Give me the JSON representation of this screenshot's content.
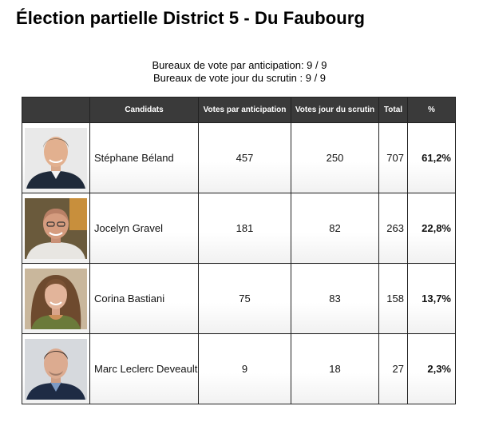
{
  "title": "Élection partielle District 5 - Du Faubourg",
  "bureaux": {
    "anticipation": "Bureaux de vote par anticipation:  9   / 9",
    "jour_scrutin": "Bureaux de vote jour du scrutin :  9   / 9"
  },
  "table": {
    "headers": {
      "photo": "",
      "candidats": "Candidats",
      "votes_anticipation": "Votes par anticipation",
      "votes_jour": "Votes jour du scrutin",
      "total": "Total",
      "pct": "%"
    },
    "rows": [
      {
        "name": "Stéphane Béland",
        "anticipation": "457",
        "jour": "250",
        "total": "707",
        "pct": "61,2%",
        "photo_icon": "candidate-photo"
      },
      {
        "name": "Jocelyn Gravel",
        "anticipation": "181",
        "jour": "82",
        "total": "263",
        "pct": "22,8%",
        "photo_icon": "candidate-photo"
      },
      {
        "name": "Corina Bastiani",
        "anticipation": "75",
        "jour": "83",
        "total": "158",
        "pct": "13,7%",
        "photo_icon": "candidate-photo"
      },
      {
        "name": "Marc Leclerc Deveault",
        "anticipation": "9",
        "jour": "18",
        "total": "27",
        "pct": "2,3%",
        "photo_icon": "candidate-photo"
      }
    ]
  },
  "colors": {
    "header_bg": "#3a3a3a",
    "header_text": "#ffffff",
    "border": "#222222"
  }
}
